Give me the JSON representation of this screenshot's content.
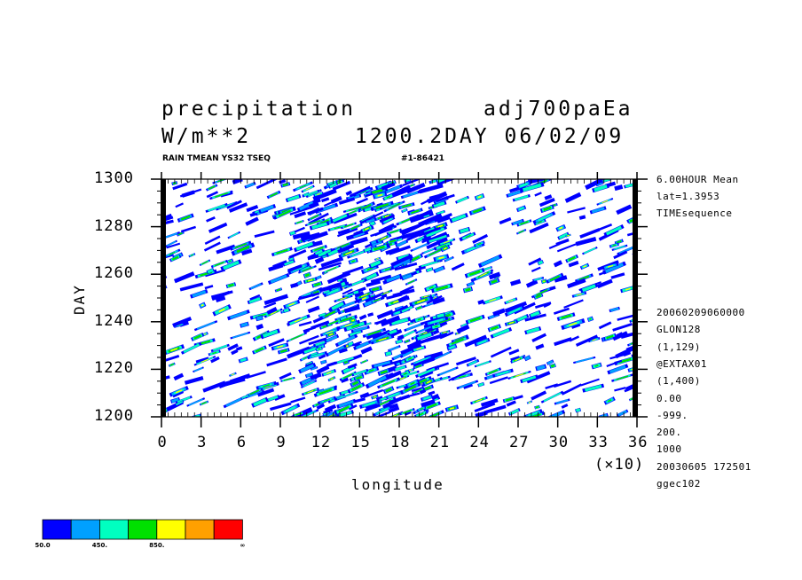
{
  "title_left_line1": "precipitation",
  "title_right_line1": "adj700paEa",
  "title_left_line2": "W/m**2",
  "title_right_line2": "1200.2DAY 06/02/09",
  "subtitle_left": "RAIN TMEAN YS32 TSEQ",
  "subtitle_right": "#1-86421",
  "side_info_top": [
    "6.00HOUR Mean",
    "lat=1.3953",
    "TIMEsequence"
  ],
  "side_info_bottom": [
    "20060209060000",
    "GLON128",
    "(1,129)",
    "@EXTAX01",
    "(1,400)",
    "0.00",
    "-999.",
    "200.",
    "1000",
    "20030605 172501",
    "ggec102"
  ],
  "colorbar": {
    "colors": [
      "#0000ff",
      "#00a0ff",
      "#00ffc0",
      "#00e000",
      "#ffff00",
      "#ffa000",
      "#ff0000"
    ],
    "labels": [
      "50.0",
      "450.",
      "850.",
      "∞"
    ]
  },
  "chart_data": {
    "type": "heatmap",
    "title": "precipitation",
    "xlabel": "longitude",
    "ylabel": "DAY",
    "x_multiplier_label": "(×10)",
    "xlim": [
      0,
      36
    ],
    "ylim": [
      1200,
      1300
    ],
    "xticks": [
      "0",
      "3",
      "6",
      "9",
      "12",
      "15",
      "18",
      "21",
      "24",
      "27",
      "30",
      "33",
      "36"
    ],
    "yticks": [
      "1200",
      "1220",
      "1240",
      "1260",
      "1280",
      "1300"
    ],
    "levels": [
      50,
      250,
      450,
      650,
      850,
      1050,
      1250
    ],
    "note": "Hovmoller diagram of precipitation; contour cells with eastward-propagating streaks"
  }
}
